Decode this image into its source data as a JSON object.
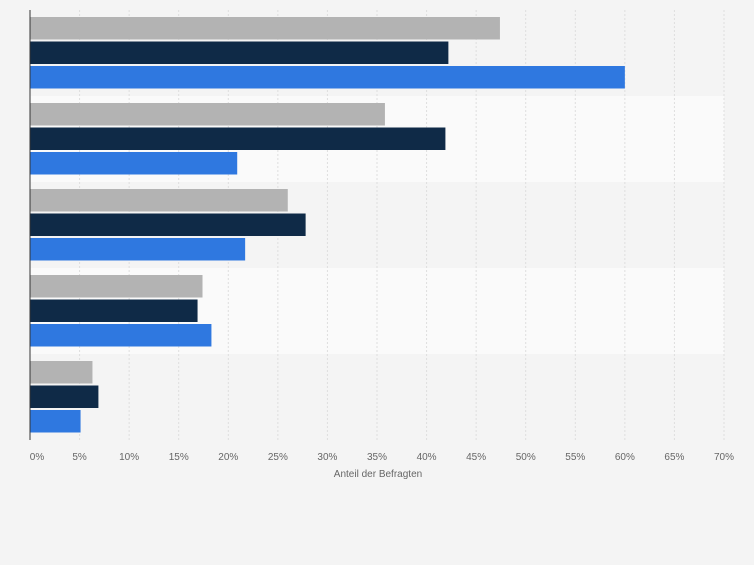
{
  "chart_data": {
    "type": "bar",
    "orientation": "horizontal",
    "title": "",
    "xlabel": "Anteil der Befragten",
    "ylabel": "",
    "xlim": [
      0,
      70
    ],
    "x_ticks": [
      0,
      5,
      10,
      15,
      20,
      25,
      30,
      35,
      40,
      45,
      50,
      55,
      60,
      65,
      70
    ],
    "tick_suffix": "%",
    "grid": true,
    "legend": "none",
    "categories": [
      "",
      "",
      "",
      "",
      ""
    ],
    "series": [
      {
        "color": "#b3b3b3",
        "values": [
          47.4,
          35.8,
          26.0,
          17.4,
          6.3
        ]
      },
      {
        "color": "#0f2a47",
        "values": [
          42.2,
          41.9,
          27.8,
          16.9,
          6.9
        ]
      },
      {
        "color": "#2f78e0",
        "values": [
          60.0,
          20.9,
          21.7,
          18.3,
          5.1
        ]
      }
    ]
  }
}
